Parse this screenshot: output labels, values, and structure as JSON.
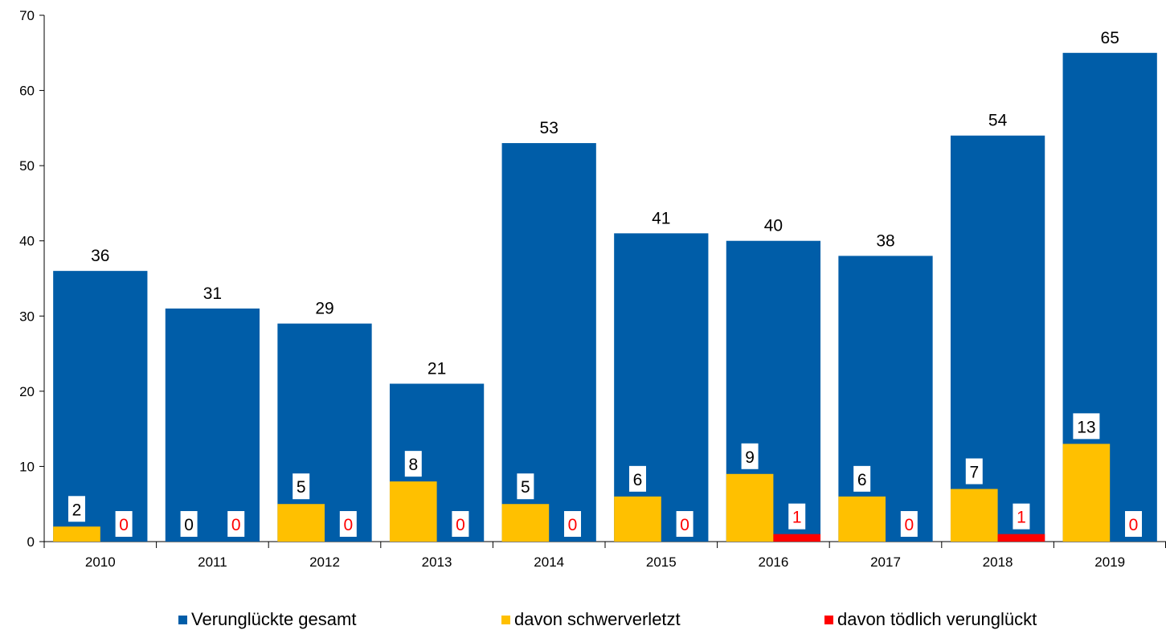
{
  "chart_data": {
    "type": "bar",
    "title": "",
    "xlabel": "",
    "ylabel": "",
    "ylim": [
      0,
      70
    ],
    "yticks": [
      "0",
      "10",
      "20",
      "30",
      "40",
      "50",
      "60",
      "70"
    ],
    "categories": [
      "2010",
      "2011",
      "2012",
      "2013",
      "2014",
      "2015",
      "2016",
      "2017",
      "2018",
      "2019"
    ],
    "series": [
      {
        "name": "Verunglückte gesamt",
        "color": "#005DA8",
        "values": [
          36,
          31,
          29,
          21,
          53,
          41,
          40,
          38,
          54,
          65
        ]
      },
      {
        "name": "davon schwerverletzt",
        "color": "#FFC000",
        "values": [
          2,
          0,
          5,
          8,
          5,
          6,
          9,
          6,
          7,
          13
        ]
      },
      {
        "name": "davon tödlich verunglückt",
        "color": "#FF0000",
        "values": [
          0,
          0,
          0,
          0,
          0,
          0,
          1,
          0,
          1,
          0
        ]
      }
    ],
    "grid": false,
    "legend_position": "bottom"
  }
}
